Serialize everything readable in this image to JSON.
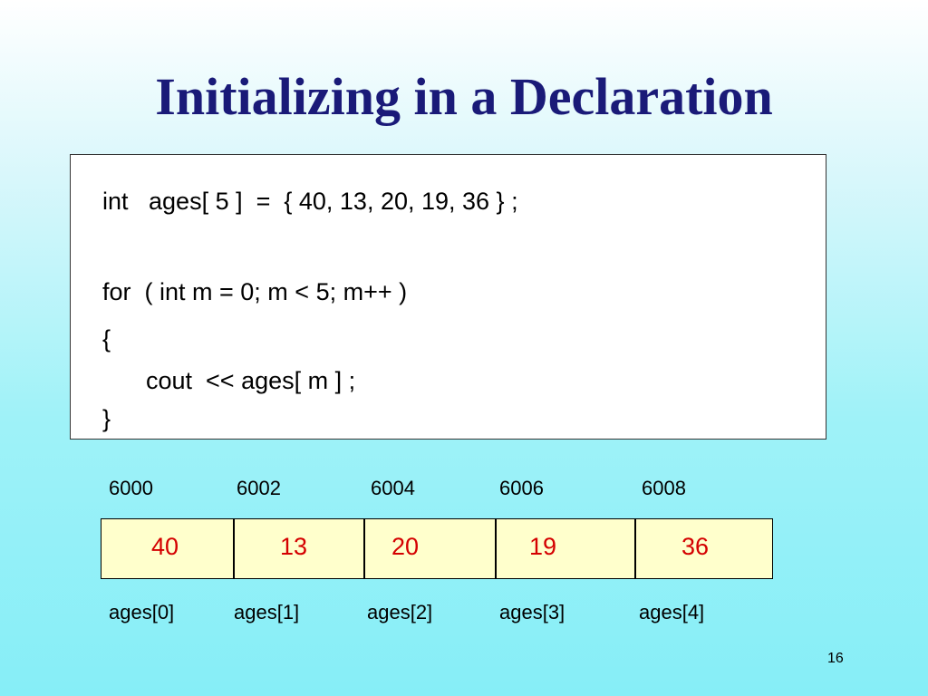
{
  "slide": {
    "title": "Initializing in a Declaration",
    "page_number": "16"
  },
  "code": {
    "line1": "int   ages[ 5 ]  =  { 40, 13, 20, 19, 36 } ;",
    "line2": "for  ( int m = 0; m < 5; m++ )",
    "line3": "{",
    "line4": "cout  << ages[ m ] ;",
    "line5": "}"
  },
  "memory": {
    "addresses": [
      "6000",
      "6002",
      "6004",
      "6006",
      "6008"
    ],
    "values": [
      "40",
      "13",
      "20",
      "19",
      "36"
    ],
    "labels": [
      "ages[0]",
      "ages[1]",
      "ages[2]",
      "ages[3]",
      "ages[4]"
    ]
  },
  "colors": {
    "title": "#1a1a78",
    "value_text": "#d40000",
    "cell_background": "#ffffcc"
  }
}
